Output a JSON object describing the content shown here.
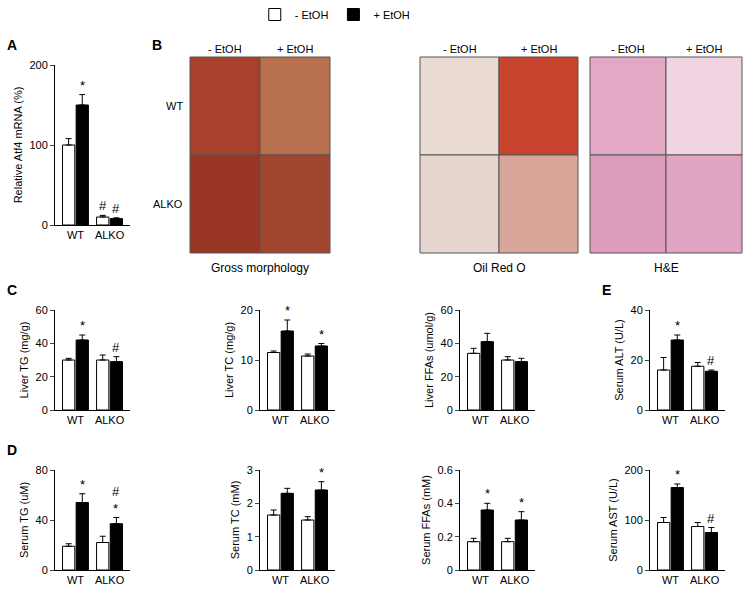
{
  "chart_data": [
    {
      "type": "bar",
      "panel": "A",
      "y_label": "Relative Atf4 mRNA (%)",
      "categories": [
        "WT",
        "ALKO"
      ],
      "ylim": [
        0,
        200
      ],
      "yticks": [
        0,
        100,
        200
      ],
      "grid": false,
      "legend": "top",
      "series": [
        {
          "name": "- EtOH",
          "color": "#ffffff",
          "values": [
            100,
            10
          ],
          "error": [
            8,
            2
          ],
          "marks": [
            null,
            [
              "#"
            ]
          ]
        },
        {
          "name": "+ EtOH",
          "color": "#000000",
          "values": [
            150,
            8
          ],
          "error": [
            13,
            1
          ],
          "marks": [
            [
              "*"
            ],
            [
              "#"
            ]
          ]
        }
      ]
    },
    {
      "type": "bar",
      "panel": "C",
      "y_label": "Liver TG (mg/g)",
      "categories": [
        "WT",
        "ALKO"
      ],
      "ylim": [
        0,
        60
      ],
      "yticks": [
        0,
        20,
        40,
        60
      ],
      "grid": false,
      "series": [
        {
          "name": "- EtOH",
          "color": "#ffffff",
          "values": [
            30,
            30
          ],
          "error": [
            1,
            3
          ]
        },
        {
          "name": "+ EtOH",
          "color": "#000000",
          "values": [
            42,
            29
          ],
          "error": [
            3,
            3
          ],
          "marks": [
            [
              "*"
            ],
            [
              "#"
            ]
          ]
        }
      ]
    },
    {
      "type": "bar",
      "y_label": "Liver TC (mg/g)",
      "categories": [
        "WT",
        "ALKO"
      ],
      "ylim": [
        0,
        20
      ],
      "yticks": [
        0,
        10,
        20
      ],
      "grid": false,
      "series": [
        {
          "name": "- EtOH",
          "color": "#ffffff",
          "values": [
            11.5,
            10.8
          ],
          "error": [
            0.3,
            0.4
          ]
        },
        {
          "name": "+ EtOH",
          "color": "#000000",
          "values": [
            15.8,
            12.8
          ],
          "error": [
            2.2,
            0.5
          ],
          "marks": [
            [
              "*"
            ],
            [
              "*"
            ]
          ]
        }
      ]
    },
    {
      "type": "bar",
      "y_label": "Liver FFAs (umol/g)",
      "categories": [
        "WT",
        "ALKO"
      ],
      "ylim": [
        0,
        60
      ],
      "yticks": [
        0,
        20,
        40,
        60
      ],
      "grid": false,
      "series": [
        {
          "name": "- EtOH",
          "color": "#ffffff",
          "values": [
            34,
            30
          ],
          "error": [
            3,
            2
          ]
        },
        {
          "name": "+ EtOH",
          "color": "#000000",
          "values": [
            41,
            29
          ],
          "error": [
            5,
            2
          ]
        }
      ]
    },
    {
      "type": "bar",
      "panel": "E",
      "y_label": "Serum ALT (U/L)",
      "categories": [
        "WT",
        "ALKO"
      ],
      "ylim": [
        0,
        40
      ],
      "yticks": [
        0,
        20,
        40
      ],
      "grid": false,
      "series": [
        {
          "name": "- EtOH",
          "color": "#ffffff",
          "values": [
            16,
            17.5
          ],
          "error": [
            5,
            1.5
          ]
        },
        {
          "name": "+ EtOH",
          "color": "#000000",
          "values": [
            28,
            15.5
          ],
          "error": [
            2,
            0.5
          ],
          "marks": [
            [
              "*"
            ],
            [
              "#"
            ]
          ]
        }
      ]
    },
    {
      "type": "bar",
      "panel": "D",
      "y_label": "Serum TG (uM)",
      "categories": [
        "WT",
        "ALKO"
      ],
      "ylim": [
        0,
        80
      ],
      "yticks": [
        0,
        40,
        80
      ],
      "grid": false,
      "series": [
        {
          "name": "- EtOH",
          "color": "#ffffff",
          "values": [
            19,
            22
          ],
          "error": [
            2,
            5
          ]
        },
        {
          "name": "+ EtOH",
          "color": "#000000",
          "values": [
            54,
            37
          ],
          "error": [
            7,
            5
          ],
          "marks": [
            [
              "*"
            ],
            [
              "#",
              "*"
            ]
          ]
        }
      ]
    },
    {
      "type": "bar",
      "y_label": "Serum TC (mM)",
      "categories": [
        "WT",
        "ALKO"
      ],
      "ylim": [
        0,
        3
      ],
      "yticks": [
        0,
        1,
        2,
        3
      ],
      "grid": false,
      "series": [
        {
          "name": "- EtOH",
          "color": "#ffffff",
          "values": [
            1.65,
            1.5
          ],
          "error": [
            0.15,
            0.1
          ]
        },
        {
          "name": "+ EtOH",
          "color": "#000000",
          "values": [
            2.3,
            2.4
          ],
          "error": [
            0.15,
            0.25
          ],
          "marks": [
            null,
            [
              "*"
            ]
          ]
        }
      ]
    },
    {
      "type": "bar",
      "y_label": "Serum FFAs (mM)",
      "categories": [
        "WT",
        "ALKO"
      ],
      "ylim": [
        0,
        0.6
      ],
      "yticks": [
        0,
        0.2,
        0.4,
        0.6
      ],
      "grid": false,
      "series": [
        {
          "name": "- EtOH",
          "color": "#ffffff",
          "values": [
            0.17,
            0.17
          ],
          "error": [
            0.02,
            0.02
          ]
        },
        {
          "name": "+ EtOH",
          "color": "#000000",
          "values": [
            0.36,
            0.3
          ],
          "error": [
            0.04,
            0.05
          ],
          "marks": [
            [
              "*"
            ],
            [
              "*"
            ]
          ]
        }
      ]
    },
    {
      "type": "bar",
      "y_label": "Serum AST (U/L)",
      "categories": [
        "WT",
        "ALKO"
      ],
      "ylim": [
        0,
        200
      ],
      "yticks": [
        0,
        100,
        200
      ],
      "grid": false,
      "series": [
        {
          "name": "- EtOH",
          "color": "#ffffff",
          "values": [
            95,
            87
          ],
          "error": [
            10,
            8
          ]
        },
        {
          "name": "+ EtOH",
          "color": "#000000",
          "values": [
            165,
            75
          ],
          "error": [
            7,
            10
          ],
          "marks": [
            [
              "*"
            ],
            [
              "#"
            ]
          ]
        }
      ]
    }
  ],
  "image_panel": {
    "panel": "B",
    "columns": [
      "- EtOH",
      "+ EtOH"
    ],
    "rows": [
      "WT",
      "ALKO"
    ],
    "images": [
      "Gross morphology",
      "Oil Red O",
      "H&E"
    ]
  }
}
